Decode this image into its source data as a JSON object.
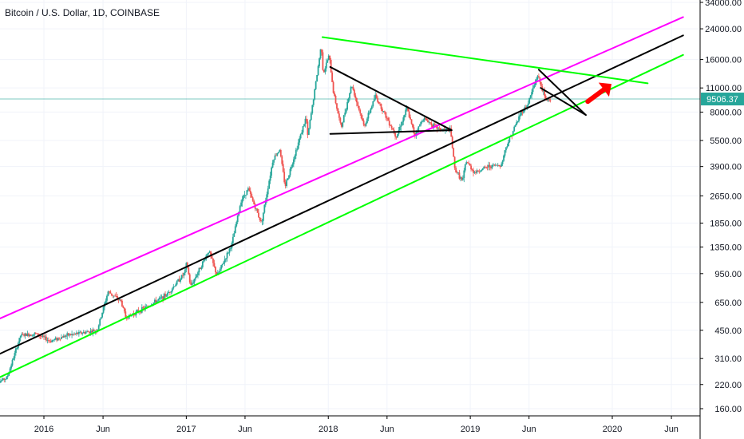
{
  "header": {
    "title": "Bitcoin / U.S. Dollar, 1D, COINBASE"
  },
  "colors": {
    "up": "#26a69a",
    "down": "#ef5350",
    "magenta": "#ff00ff",
    "black": "#000000",
    "green": "#00ff00",
    "arrow": "#ff0000",
    "price_line": "#26a69a"
  },
  "chart_data": {
    "type": "candlestick",
    "title": "Bitcoin / U.S. Dollar, 1D, COINBASE",
    "y_scale": "log",
    "ylim": [
      145,
      36000
    ],
    "y_ticks": [
      34000,
      24000,
      16000,
      11000,
      8000,
      5500,
      3900,
      2650,
      1850,
      1350,
      950,
      650,
      450,
      310,
      220,
      160
    ],
    "y_tick_labels": [
      "34000.00",
      "24000.00",
      "16000.00",
      "11000.00",
      "8000.00",
      "5500.00",
      "3900.00",
      "2650.00",
      "1850.00",
      "1350.00",
      "950.00",
      "650.00",
      "450.00",
      "310.00",
      "220.00",
      "160.00"
    ],
    "x_ticks": [
      "2016-01-01",
      "2016-06-01",
      "2017-01-01",
      "2017-06-01",
      "2018-01-01",
      "2018-06-01",
      "2019-01-01",
      "2019-06-01",
      "2020-01-01",
      "2020-06-01"
    ],
    "x_tick_labels": [
      "2016",
      "Jun",
      "2017",
      "Jun",
      "2018",
      "Jun",
      "2019",
      "Jun",
      "2020",
      "Jun"
    ],
    "last_price": 9506.37,
    "last_price_label": "9506.37",
    "price_path": [
      [
        "2015-08-25",
        220
      ],
      [
        "2015-10-01",
        240
      ],
      [
        "2015-11-05",
        420
      ],
      [
        "2015-12-15",
        430
      ],
      [
        "2016-01-20",
        390
      ],
      [
        "2016-03-01",
        420
      ],
      [
        "2016-05-20",
        450
      ],
      [
        "2016-06-17",
        750
      ],
      [
        "2016-07-20",
        660
      ],
      [
        "2016-08-02",
        530
      ],
      [
        "2016-09-20",
        605
      ],
      [
        "2016-11-15",
        720
      ],
      [
        "2016-12-31",
        960
      ],
      [
        "2017-01-05",
        1100
      ],
      [
        "2017-01-15",
        800
      ],
      [
        "2017-03-03",
        1290
      ],
      [
        "2017-03-24",
        920
      ],
      [
        "2017-05-01",
        1400
      ],
      [
        "2017-05-25",
        2500
      ],
      [
        "2017-06-12",
        2900
      ],
      [
        "2017-07-16",
        1850
      ],
      [
        "2017-08-15",
        4300
      ],
      [
        "2017-09-01",
        4900
      ],
      [
        "2017-09-15",
        3000
      ],
      [
        "2017-11-08",
        7500
      ],
      [
        "2017-11-12",
        5800
      ],
      [
        "2017-12-01",
        11000
      ],
      [
        "2017-12-17",
        19500
      ],
      [
        "2017-12-22",
        13200
      ],
      [
        "2018-01-06",
        17000
      ],
      [
        "2018-01-17",
        10500
      ],
      [
        "2018-02-06",
        6500
      ],
      [
        "2018-03-05",
        11500
      ],
      [
        "2018-04-06",
        6600
      ],
      [
        "2018-05-05",
        9900
      ],
      [
        "2018-06-28",
        5800
      ],
      [
        "2018-07-25",
        8400
      ],
      [
        "2018-08-14",
        5900
      ],
      [
        "2018-09-05",
        7400
      ],
      [
        "2018-10-15",
        6400
      ],
      [
        "2018-11-14",
        6300
      ],
      [
        "2018-11-25",
        3800
      ],
      [
        "2018-12-15",
        3200
      ],
      [
        "2018-12-24",
        4200
      ],
      [
        "2019-01-15",
        3600
      ],
      [
        "2019-02-18",
        3900
      ],
      [
        "2019-03-25",
        4000
      ],
      [
        "2019-04-05",
        5000
      ],
      [
        "2019-05-15",
        8000
      ],
      [
        "2019-05-30",
        8700
      ],
      [
        "2019-06-26",
        13000
      ],
      [
        "2019-07-17",
        9400
      ],
      [
        "2019-07-27",
        9506.37
      ]
    ],
    "drawings": [
      {
        "name": "magenta-trendline",
        "color": "magenta",
        "from": [
          "2015-08-01",
          480
        ],
        "to": [
          "2020-07-01",
          28000
        ]
      },
      {
        "name": "black-trendline",
        "color": "black",
        "from": [
          "2015-08-01",
          300
        ],
        "to": [
          "2020-07-01",
          22000
        ]
      },
      {
        "name": "green-lower-trendline",
        "color": "green",
        "from": [
          "2015-08-01",
          220
        ],
        "to": [
          "2020-07-01",
          17000
        ]
      },
      {
        "name": "green-upper-trendline",
        "color": "green",
        "from": [
          "2017-12-17",
          21500
        ],
        "to": [
          "2020-04-01",
          11700
        ]
      },
      {
        "name": "descending-triangle-top",
        "color": "black",
        "from": [
          "2018-01-06",
          14500
        ],
        "to": [
          "2018-11-14",
          6300
        ]
      },
      {
        "name": "descending-triangle-base",
        "color": "black",
        "from": [
          "2018-01-06",
          6000
        ],
        "to": [
          "2018-11-14",
          6300
        ]
      },
      {
        "name": "pennant-top",
        "color": "black",
        "from": [
          "2019-06-26",
          14000
        ],
        "to": [
          "2019-10-25",
          7700
        ]
      },
      {
        "name": "pennant-bottom",
        "color": "black",
        "from": [
          "2019-07-01",
          11000
        ],
        "to": [
          "2019-10-25",
          7700
        ]
      }
    ],
    "arrow": {
      "from": [
        "2019-10-30",
        9200
      ],
      "to": [
        "2019-12-30",
        11600
      ]
    }
  }
}
